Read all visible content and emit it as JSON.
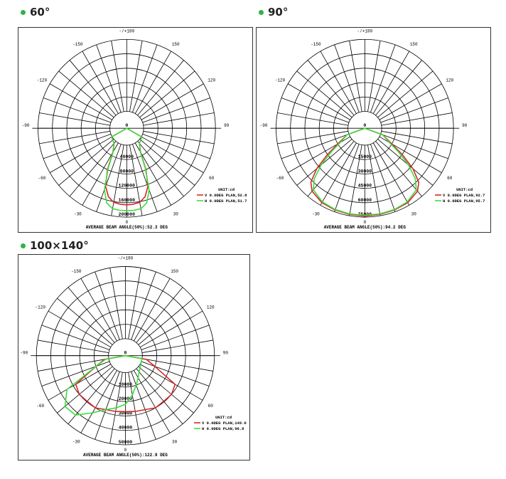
{
  "sections": [
    {
      "title": "60°"
    },
    {
      "title": "90°"
    },
    {
      "title": "100×140°"
    }
  ],
  "colors": {
    "v_curve": "#d62828",
    "h_curve": "#3ddc3d",
    "grid": "#000000",
    "accent_dot": "#2fb34a"
  },
  "chart_data": [
    {
      "type": "polar-line",
      "unit_label": "UNIT:cd",
      "angle_labels": [
        "-/+180",
        "-150",
        "150",
        "-120",
        "120",
        "-90",
        "90",
        "-60",
        "60",
        "-30",
        "30",
        "0"
      ],
      "radial_ticks": [
        0,
        40000,
        80000,
        120000,
        160000,
        200000
      ],
      "rmax": 200000,
      "footer": "AVERAGE BEAM ANGLE(50%):52.3 DEG",
      "series": [
        {
          "name": "V 0.0DEG PLAN,52.8",
          "color": "#d62828",
          "angles": [
            -60,
            -40,
            -30,
            -25,
            -20,
            -15,
            -10,
            -5,
            0,
            5,
            10,
            15,
            20,
            25,
            30,
            40,
            60
          ],
          "values": [
            1500,
            8000,
            30000,
            80000,
            125000,
            150000,
            162000,
            165000,
            166000,
            165000,
            162000,
            150000,
            125000,
            80000,
            30000,
            8000,
            1500
          ]
        },
        {
          "name": "H 0.0DEG PLAN,51.7",
          "color": "#3ddc3d",
          "angles": [
            -60,
            -40,
            -30,
            -25,
            -20,
            -15,
            -10,
            -5,
            0,
            5,
            10,
            15,
            20,
            25,
            30,
            40,
            60
          ],
          "values": [
            1500,
            8000,
            28000,
            75000,
            135000,
            168000,
            180000,
            182000,
            182000,
            182000,
            180000,
            168000,
            135000,
            75000,
            28000,
            8000,
            1500
          ]
        }
      ]
    },
    {
      "type": "polar-line",
      "unit_label": "UNIT:cd",
      "angle_labels": [
        "-/+180",
        "-150",
        "150",
        "-120",
        "120",
        "-90",
        "90",
        "-60",
        "60",
        "-30",
        "30",
        "0"
      ],
      "radial_ticks": [
        0,
        15000,
        30000,
        45000,
        60000,
        75000
      ],
      "rmax": 75000,
      "footer": "AVERAGE BEAM ANGLE(50%):94.2 DEG",
      "series": [
        {
          "name": "V 0.0DEG PLAN,92.7",
          "color": "#d62828",
          "angles": [
            -70,
            -60,
            -55,
            -50,
            -45,
            -40,
            -30,
            -20,
            -10,
            0,
            10,
            20,
            30,
            40,
            45,
            50,
            55,
            60,
            70
          ],
          "values": [
            2000,
            15000,
            30000,
            48000,
            62000,
            68000,
            72000,
            73000,
            73500,
            74000,
            73500,
            73000,
            72000,
            68000,
            62000,
            48000,
            30000,
            15000,
            2000
          ]
        },
        {
          "name": "H 0.0DEG PLAN,95.7",
          "color": "#3ddc3d",
          "angles": [
            -70,
            -60,
            -55,
            -50,
            -45,
            -40,
            -30,
            -20,
            -10,
            0,
            10,
            20,
            30,
            40,
            45,
            50,
            55,
            60,
            70
          ],
          "values": [
            2000,
            12000,
            25000,
            42000,
            57000,
            66000,
            71000,
            72500,
            73000,
            73000,
            73000,
            72500,
            71000,
            66000,
            57000,
            42000,
            25000,
            12000,
            2000
          ]
        }
      ]
    },
    {
      "type": "polar-line",
      "unit_label": "UNIT:cd",
      "angle_labels": [
        "-/+180",
        "-150",
        "150",
        "-120",
        "120",
        "-90",
        "90",
        "-60",
        "60",
        "-30",
        "30",
        "0"
      ],
      "radial_ticks": [
        0,
        10000,
        20000,
        30000,
        40000,
        50000
      ],
      "rmax": 50000,
      "footer": "AVERAGE BEAM ANGLE(50%):122.9 DEG",
      "series": [
        {
          "name": "V 0.0DEG PLAN,149.0",
          "color": "#d62828",
          "angles": [
            -80,
            -70,
            -60,
            -50,
            -40,
            -30,
            -20,
            -10,
            0,
            10,
            20,
            30,
            40,
            50,
            60,
            70,
            80
          ],
          "values": [
            3000,
            10000,
            28000,
            30000,
            29500,
            30000,
            28000,
            27500,
            27000,
            27500,
            28000,
            30000,
            29500,
            30000,
            28000,
            10000,
            3000
          ]
        },
        {
          "name": "H 0.0DEG PLAN,96.8",
          "color": "#3ddc3d",
          "angles": [
            -80,
            -70,
            -60,
            -50,
            -40,
            -30,
            -20,
            -10,
            0,
            10,
            20,
            30,
            40,
            50,
            60,
            70,
            80
          ],
          "values": [
            2000,
            10000,
            35000,
            43000,
            42000,
            34000,
            28000,
            25000,
            22000,
            16000,
            10000,
            6000,
            3000,
            1500,
            500,
            0,
            0
          ]
        }
      ]
    }
  ]
}
